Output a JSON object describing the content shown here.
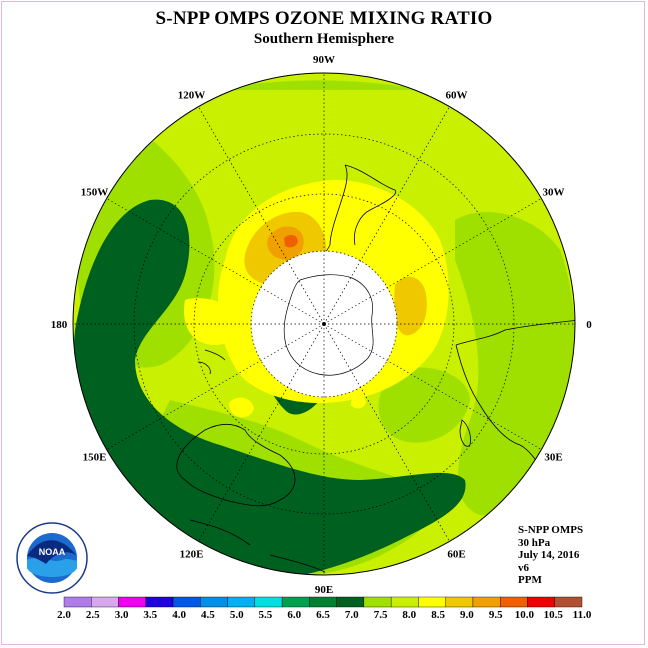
{
  "header": {
    "title": "S-NPP OMPS OZONE MIXING RATIO",
    "subtitle": "Southern Hemisphere"
  },
  "info": {
    "instrument": "S-NPP OMPS",
    "pressure": "30 hPa",
    "date": "July 14, 2016",
    "version": "v6",
    "units": "PPM"
  },
  "logo": {
    "text": "NOAA",
    "ring_text": "NATIONAL OCEANIC AND ATMOSPHERIC ADMINISTRATION · U.S. DEPARTMENT OF COMMERCE"
  },
  "longitude_labels": [
    {
      "text": "90W",
      "angle": 270
    },
    {
      "text": "60W",
      "angle": 300
    },
    {
      "text": "30W",
      "angle": 330
    },
    {
      "text": "0",
      "angle": 0
    },
    {
      "text": "30E",
      "angle": 30
    },
    {
      "text": "60E",
      "angle": 60
    },
    {
      "text": "90E",
      "angle": 90
    },
    {
      "text": "120E",
      "angle": 120
    },
    {
      "text": "150E",
      "angle": 150
    },
    {
      "text": "180",
      "angle": 180
    },
    {
      "text": "150W",
      "angle": 210
    },
    {
      "text": "120W",
      "angle": 240
    }
  ],
  "colorbar": {
    "labels": [
      "2.0",
      "2.5",
      "3.0",
      "3.5",
      "4.0",
      "4.5",
      "5.0",
      "5.5",
      "6.0",
      "6.5",
      "7.0",
      "7.5",
      "8.0",
      "8.5",
      "9.0",
      "9.5",
      "10.0",
      "10.5",
      "11.0"
    ],
    "colors": [
      "#b07ce8",
      "#d8a8ee",
      "#f000f0",
      "#2000e0",
      "#0058e8",
      "#0090e8",
      "#00b0f0",
      "#00e0e0",
      "#00a050",
      "#008030",
      "#006020",
      "#a0e000",
      "#c8f000",
      "#ffff00",
      "#f0c800",
      "#f0a000",
      "#f06000",
      "#f00000",
      "#b05030"
    ]
  },
  "map_colors": {
    "background": "#c8f000",
    "dark_green": "#006020",
    "light_green": "#a0e000",
    "yellow": "#ffff00",
    "orange": "#f0c800",
    "dark_orange": "#f0a000",
    "red_orange": "#f06000"
  }
}
